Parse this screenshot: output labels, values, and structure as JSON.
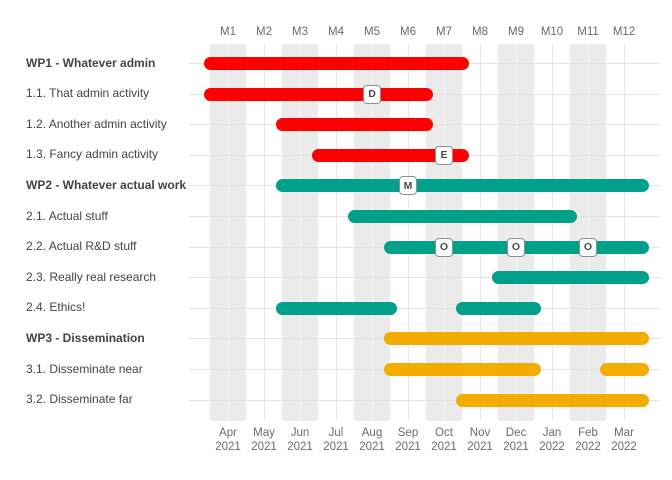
{
  "chart_data": {
    "type": "gantt",
    "title": "",
    "x_axis_top": {
      "tick_labels": [
        "M1",
        "M2",
        "M3",
        "M4",
        "M5",
        "M6",
        "M7",
        "M8",
        "M9",
        "M10",
        "M11",
        "M12"
      ]
    },
    "x_axis_bottom": {
      "tick_labels": [
        {
          "month": "Apr",
          "year": "2021"
        },
        {
          "month": "May",
          "year": "2021"
        },
        {
          "month": "Jun",
          "year": "2021"
        },
        {
          "month": "Jul",
          "year": "2021"
        },
        {
          "month": "Aug",
          "year": "2021"
        },
        {
          "month": "Sep",
          "year": "2021"
        },
        {
          "month": "Oct",
          "year": "2021"
        },
        {
          "month": "Nov",
          "year": "2021"
        },
        {
          "month": "Dec",
          "year": "2021"
        },
        {
          "month": "Jan",
          "year": "2022"
        },
        {
          "month": "Feb",
          "year": "2022"
        },
        {
          "month": "Mar",
          "year": "2022"
        }
      ]
    },
    "x_range_months": [
      1,
      12
    ],
    "striped_months": [
      1,
      3,
      5,
      7,
      9,
      11
    ],
    "legend_position": "none",
    "grid": "on",
    "colors": {
      "wp1_red": "#FF0000",
      "wp2_teal": "#00A08A",
      "wp3_orange": "#F2AD00",
      "stripe": "#EBEBEB",
      "gridline_on_white": "#E7E7E7",
      "gridline_on_stripe": "#F6F6F6",
      "row_line": "#E3E3E3",
      "label_text": "#444444",
      "axis_text": "#6B6B6B",
      "spot_border": "#8E8E8E",
      "spot_text": "#4A4A4A"
    },
    "rows": [
      {
        "label": "WP1 - Whatever admin",
        "type": "wp",
        "color_key": "wp1_red",
        "segments": [
          [
            1,
            7
          ]
        ],
        "spots": []
      },
      {
        "label": "1.1. That admin activity",
        "type": "activity",
        "color_key": "wp1_red",
        "segments": [
          [
            1,
            6
          ]
        ],
        "spots": [
          {
            "label": "D",
            "month": 5
          }
        ]
      },
      {
        "label": "1.2. Another admin activity",
        "type": "activity",
        "color_key": "wp1_red",
        "segments": [
          [
            3,
            6
          ]
        ],
        "spots": []
      },
      {
        "label": "1.3. Fancy admin activity",
        "type": "activity",
        "color_key": "wp1_red",
        "segments": [
          [
            4,
            7
          ]
        ],
        "spots": [
          {
            "label": "E",
            "month": 7
          }
        ]
      },
      {
        "label": "WP2 - Whatever actual work",
        "type": "wp",
        "color_key": "wp2_teal",
        "segments": [
          [
            3,
            12
          ]
        ],
        "spots": [
          {
            "label": "M",
            "month": 6
          }
        ]
      },
      {
        "label": "2.1. Actual stuff",
        "type": "activity",
        "color_key": "wp2_teal",
        "segments": [
          [
            5,
            10
          ]
        ],
        "spots": []
      },
      {
        "label": "2.2. Actual R&D stuff",
        "type": "activity",
        "color_key": "wp2_teal",
        "segments": [
          [
            6,
            12
          ]
        ],
        "spots": [
          {
            "label": "O",
            "month": 7
          },
          {
            "label": "O",
            "month": 9
          },
          {
            "label": "O",
            "month": 11
          }
        ]
      },
      {
        "label": "2.3. Really real research",
        "type": "activity",
        "color_key": "wp2_teal",
        "segments": [
          [
            9,
            12
          ]
        ],
        "spots": []
      },
      {
        "label": "2.4. Ethics!",
        "type": "activity",
        "color_key": "wp2_teal",
        "segments": [
          [
            3,
            5
          ],
          [
            8,
            9
          ]
        ],
        "spots": []
      },
      {
        "label": "WP3 - Dissemination",
        "type": "wp",
        "color_key": "wp3_orange",
        "segments": [
          [
            6,
            12
          ]
        ],
        "spots": []
      },
      {
        "label": "3.1. Disseminate near",
        "type": "activity",
        "color_key": "wp3_orange",
        "segments": [
          [
            6,
            9
          ],
          [
            12,
            12
          ]
        ],
        "spots": []
      },
      {
        "label": "3.2. Disseminate far",
        "type": "activity",
        "color_key": "wp3_orange",
        "segments": [
          [
            8,
            12
          ]
        ],
        "spots": []
      }
    ]
  }
}
